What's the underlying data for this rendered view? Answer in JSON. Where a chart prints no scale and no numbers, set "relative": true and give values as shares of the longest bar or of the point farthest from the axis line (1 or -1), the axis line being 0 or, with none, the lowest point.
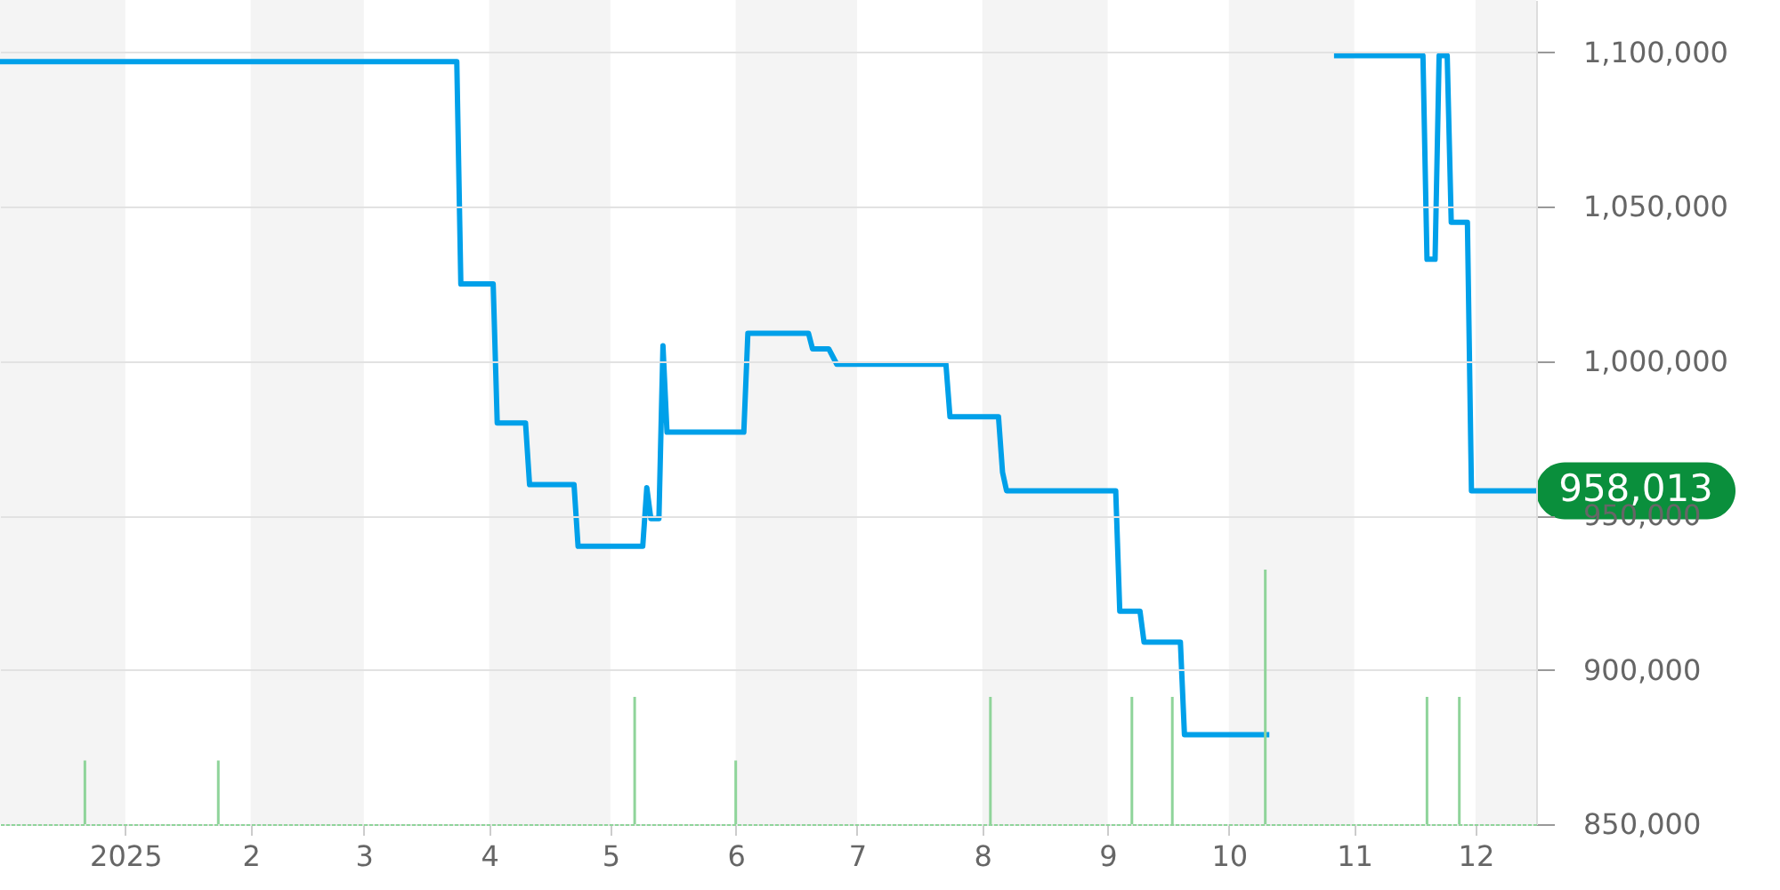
{
  "chart_data": [
    {
      "type": "line",
      "x": [
        "2024-12-01",
        "2025-03-24",
        "2025-03-25",
        "2025-04-02",
        "2025-04-03",
        "2025-04-10",
        "2025-04-11",
        "2025-04-22",
        "2025-04-23",
        "2025-05-09",
        "2025-05-10",
        "2025-05-11",
        "2025-05-13",
        "2025-05-14",
        "2025-05-15",
        "2025-06-03",
        "2025-06-04",
        "2025-06-19",
        "2025-06-20",
        "2025-06-24",
        "2025-06-26",
        "2025-07-23",
        "2025-07-24",
        "2025-08-05",
        "2025-08-06",
        "2025-08-07",
        "2025-09-03",
        "2025-09-04",
        "2025-09-09",
        "2025-09-10",
        "2025-09-19",
        "2025-09-20",
        "2025-10-11",
        "2025-10-20",
        "2025-10-27",
        "2025-11-18",
        "2025-11-19",
        "2025-11-21",
        "2025-11-22",
        "2025-11-24",
        "2025-11-25",
        "2025-11-29",
        "2025-11-30",
        "2025-12-16"
      ],
      "series": [
        {
          "color": "#00a0e9",
          "values": [
            1097000,
            1097000,
            1025000,
            1025000,
            980000,
            980000,
            960000,
            960000,
            940000,
            940000,
            959000,
            949000,
            949000,
            1005000,
            977000,
            977000,
            1009000,
            1009000,
            1004000,
            1004000,
            999000,
            999000,
            982000,
            982000,
            964000,
            958000,
            958000,
            919000,
            919000,
            909000,
            909000,
            879000,
            879000,
            null,
            1099000,
            1099000,
            1033000,
            1033000,
            1099000,
            1099000,
            1045000,
            1045000,
            958000,
            958000
          ]
        }
      ],
      "xlim": [
        "2024-12-01",
        "2025-12-16"
      ],
      "ylim": [
        850000,
        1117000
      ],
      "xticks": [
        {
          "value": "2025-01-01",
          "label": "2025"
        },
        {
          "value": "2025-02-01",
          "label": "2"
        },
        {
          "value": "2025-03-01",
          "label": "3"
        },
        {
          "value": "2025-04-01",
          "label": "4"
        },
        {
          "value": "2025-05-01",
          "label": "5"
        },
        {
          "value": "2025-06-01",
          "label": "6"
        },
        {
          "value": "2025-07-01",
          "label": "7"
        },
        {
          "value": "2025-08-01",
          "label": "8"
        },
        {
          "value": "2025-09-01",
          "label": "9"
        },
        {
          "value": "2025-10-01",
          "label": "10"
        },
        {
          "value": "2025-11-01",
          "label": "11"
        },
        {
          "value": "2025-12-01",
          "label": "12"
        }
      ],
      "yticks": [
        {
          "value": 850000,
          "label": "850,000"
        },
        {
          "value": 900000,
          "label": "900,000"
        },
        {
          "value": 950000,
          "label": "950,000"
        },
        {
          "value": 1000000,
          "label": "1,000,000"
        },
        {
          "value": 1050000,
          "label": "1,050,000"
        },
        {
          "value": 1100000,
          "label": "1,100,000"
        }
      ],
      "grid": "y",
      "bands": [
        {
          "axis": "x",
          "from": "2024-12-01",
          "to": "2025-01-01",
          "color": "#f4f4f4"
        },
        {
          "axis": "x",
          "from": "2025-02-01",
          "to": "2025-03-01",
          "color": "#f4f4f4"
        },
        {
          "axis": "x",
          "from": "2025-04-01",
          "to": "2025-05-01",
          "color": "#f4f4f4"
        },
        {
          "axis": "x",
          "from": "2025-06-01",
          "to": "2025-07-01",
          "color": "#f4f4f4"
        },
        {
          "axis": "x",
          "from": "2025-08-01",
          "to": "2025-09-01",
          "color": "#f4f4f4"
        },
        {
          "axis": "x",
          "from": "2025-10-01",
          "to": "2025-11-01",
          "color": "#f4f4f4"
        },
        {
          "axis": "x",
          "from": "2025-12-01",
          "to": "2025-12-16",
          "color": "#f4f4f4"
        }
      ],
      "annotations": [
        {
          "text": "958,013",
          "x": "2025-12-16",
          "y": 958013
        }
      ]
    },
    {
      "type": "bar",
      "relative": true,
      "color": "#8fd49a",
      "tick_labels": false,
      "xlim": [
        "2024-12-01",
        "2025-12-16"
      ],
      "x": [
        "2024-12-22",
        "2025-01-24",
        "2025-05-07",
        "2025-06-01",
        "2025-08-03",
        "2025-09-07",
        "2025-09-17",
        "2025-10-10",
        "2025-11-19",
        "2025-11-27"
      ],
      "values": [
        0.25,
        0.25,
        0.5,
        0.25,
        0.5,
        0.5,
        0.5,
        1,
        0.5,
        0.5
      ]
    }
  ]
}
